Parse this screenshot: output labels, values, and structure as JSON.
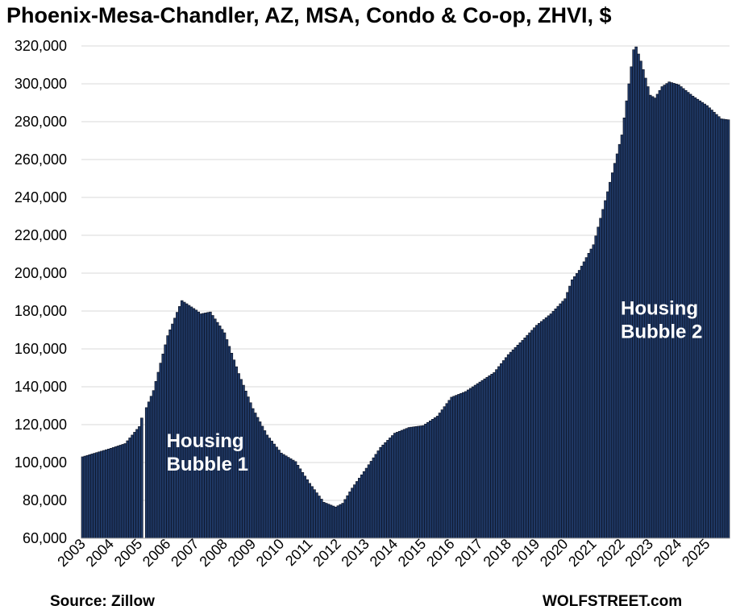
{
  "title": "Phoenix-Mesa-Chandler, AZ, MSA, Condo & Co-op, ZHVI, $",
  "source": "Source: Zillow",
  "brand": "WOLFSTREET.com",
  "colors": {
    "bar": "#1f3864",
    "bar_edge": "#0a0f1e",
    "grid": "#d9d9d9",
    "annotation": "#ffffff"
  },
  "chart_data": {
    "type": "bar",
    "title": "Phoenix-Mesa-Chandler, AZ, MSA, Condo & Co-op, ZHVI, $",
    "xlabel": "",
    "ylabel": "",
    "ylim": [
      60000,
      320000
    ],
    "yticks": [
      "60,000",
      "80,000",
      "100,000",
      "120,000",
      "140,000",
      "160,000",
      "180,000",
      "200,000",
      "220,000",
      "240,000",
      "260,000",
      "280,000",
      "300,000",
      "320,000"
    ],
    "xticks": [
      "2003",
      "2004",
      "2005",
      "2006",
      "2007",
      "2008",
      "2009",
      "2010",
      "2011",
      "2012",
      "2013",
      "2014",
      "2015",
      "2016",
      "2017",
      "2018",
      "2019",
      "2020",
      "2021",
      "2022",
      "2023",
      "2024",
      "2025"
    ],
    "grid": true,
    "frequency": "monthly",
    "start": "2003-01",
    "end": "2025-10",
    "anchors": [
      [
        "2003-01",
        103000
      ],
      [
        "2004-01",
        107500
      ],
      [
        "2004-07",
        110000
      ],
      [
        "2005-01",
        119000
      ],
      [
        "2005-02",
        123500
      ],
      [
        "2005-03",
        60000
      ],
      [
        "2005-04",
        129000
      ],
      [
        "2005-07",
        138000
      ],
      [
        "2006-01",
        167000
      ],
      [
        "2006-07",
        185500
      ],
      [
        "2007-01",
        180500
      ],
      [
        "2007-03",
        178500
      ],
      [
        "2007-07",
        179500
      ],
      [
        "2008-01",
        168500
      ],
      [
        "2008-07",
        147000
      ],
      [
        "2009-01",
        128500
      ],
      [
        "2009-07",
        114500
      ],
      [
        "2010-01",
        105000
      ],
      [
        "2010-07",
        100500
      ],
      [
        "2011-01",
        89000
      ],
      [
        "2011-07",
        79000
      ],
      [
        "2011-12",
        76500
      ],
      [
        "2012-03",
        78500
      ],
      [
        "2012-07",
        86500
      ],
      [
        "2013-01",
        97000
      ],
      [
        "2013-07",
        108000
      ],
      [
        "2014-01",
        115500
      ],
      [
        "2014-07",
        118500
      ],
      [
        "2015-01",
        119500
      ],
      [
        "2015-07",
        124500
      ],
      [
        "2016-01",
        134500
      ],
      [
        "2016-07",
        137500
      ],
      [
        "2017-01",
        142500
      ],
      [
        "2017-07",
        147500
      ],
      [
        "2018-01",
        157000
      ],
      [
        "2018-07",
        164500
      ],
      [
        "2019-01",
        172500
      ],
      [
        "2019-07",
        178500
      ],
      [
        "2020-01",
        186500
      ],
      [
        "2020-04",
        196500
      ],
      [
        "2020-07",
        201500
      ],
      [
        "2021-01",
        215000
      ],
      [
        "2021-07",
        243000
      ],
      [
        "2022-01",
        273000
      ],
      [
        "2022-04",
        300000
      ],
      [
        "2022-06",
        318000
      ],
      [
        "2022-07",
        319500
      ],
      [
        "2022-09",
        312000
      ],
      [
        "2023-01",
        294000
      ],
      [
        "2023-03",
        292500
      ],
      [
        "2023-06",
        298500
      ],
      [
        "2023-09",
        301000
      ],
      [
        "2024-01",
        299500
      ],
      [
        "2024-07",
        293500
      ],
      [
        "2025-01",
        288500
      ],
      [
        "2025-07",
        281500
      ],
      [
        "2025-10",
        281000
      ]
    ],
    "annotations": [
      {
        "lines": [
          "Housing",
          "Bubble 1"
        ],
        "at": "2006-01",
        "value": 108000
      },
      {
        "lines": [
          "Housing",
          "Bubble 2"
        ],
        "at": "2022-01",
        "value": 178000
      }
    ]
  }
}
